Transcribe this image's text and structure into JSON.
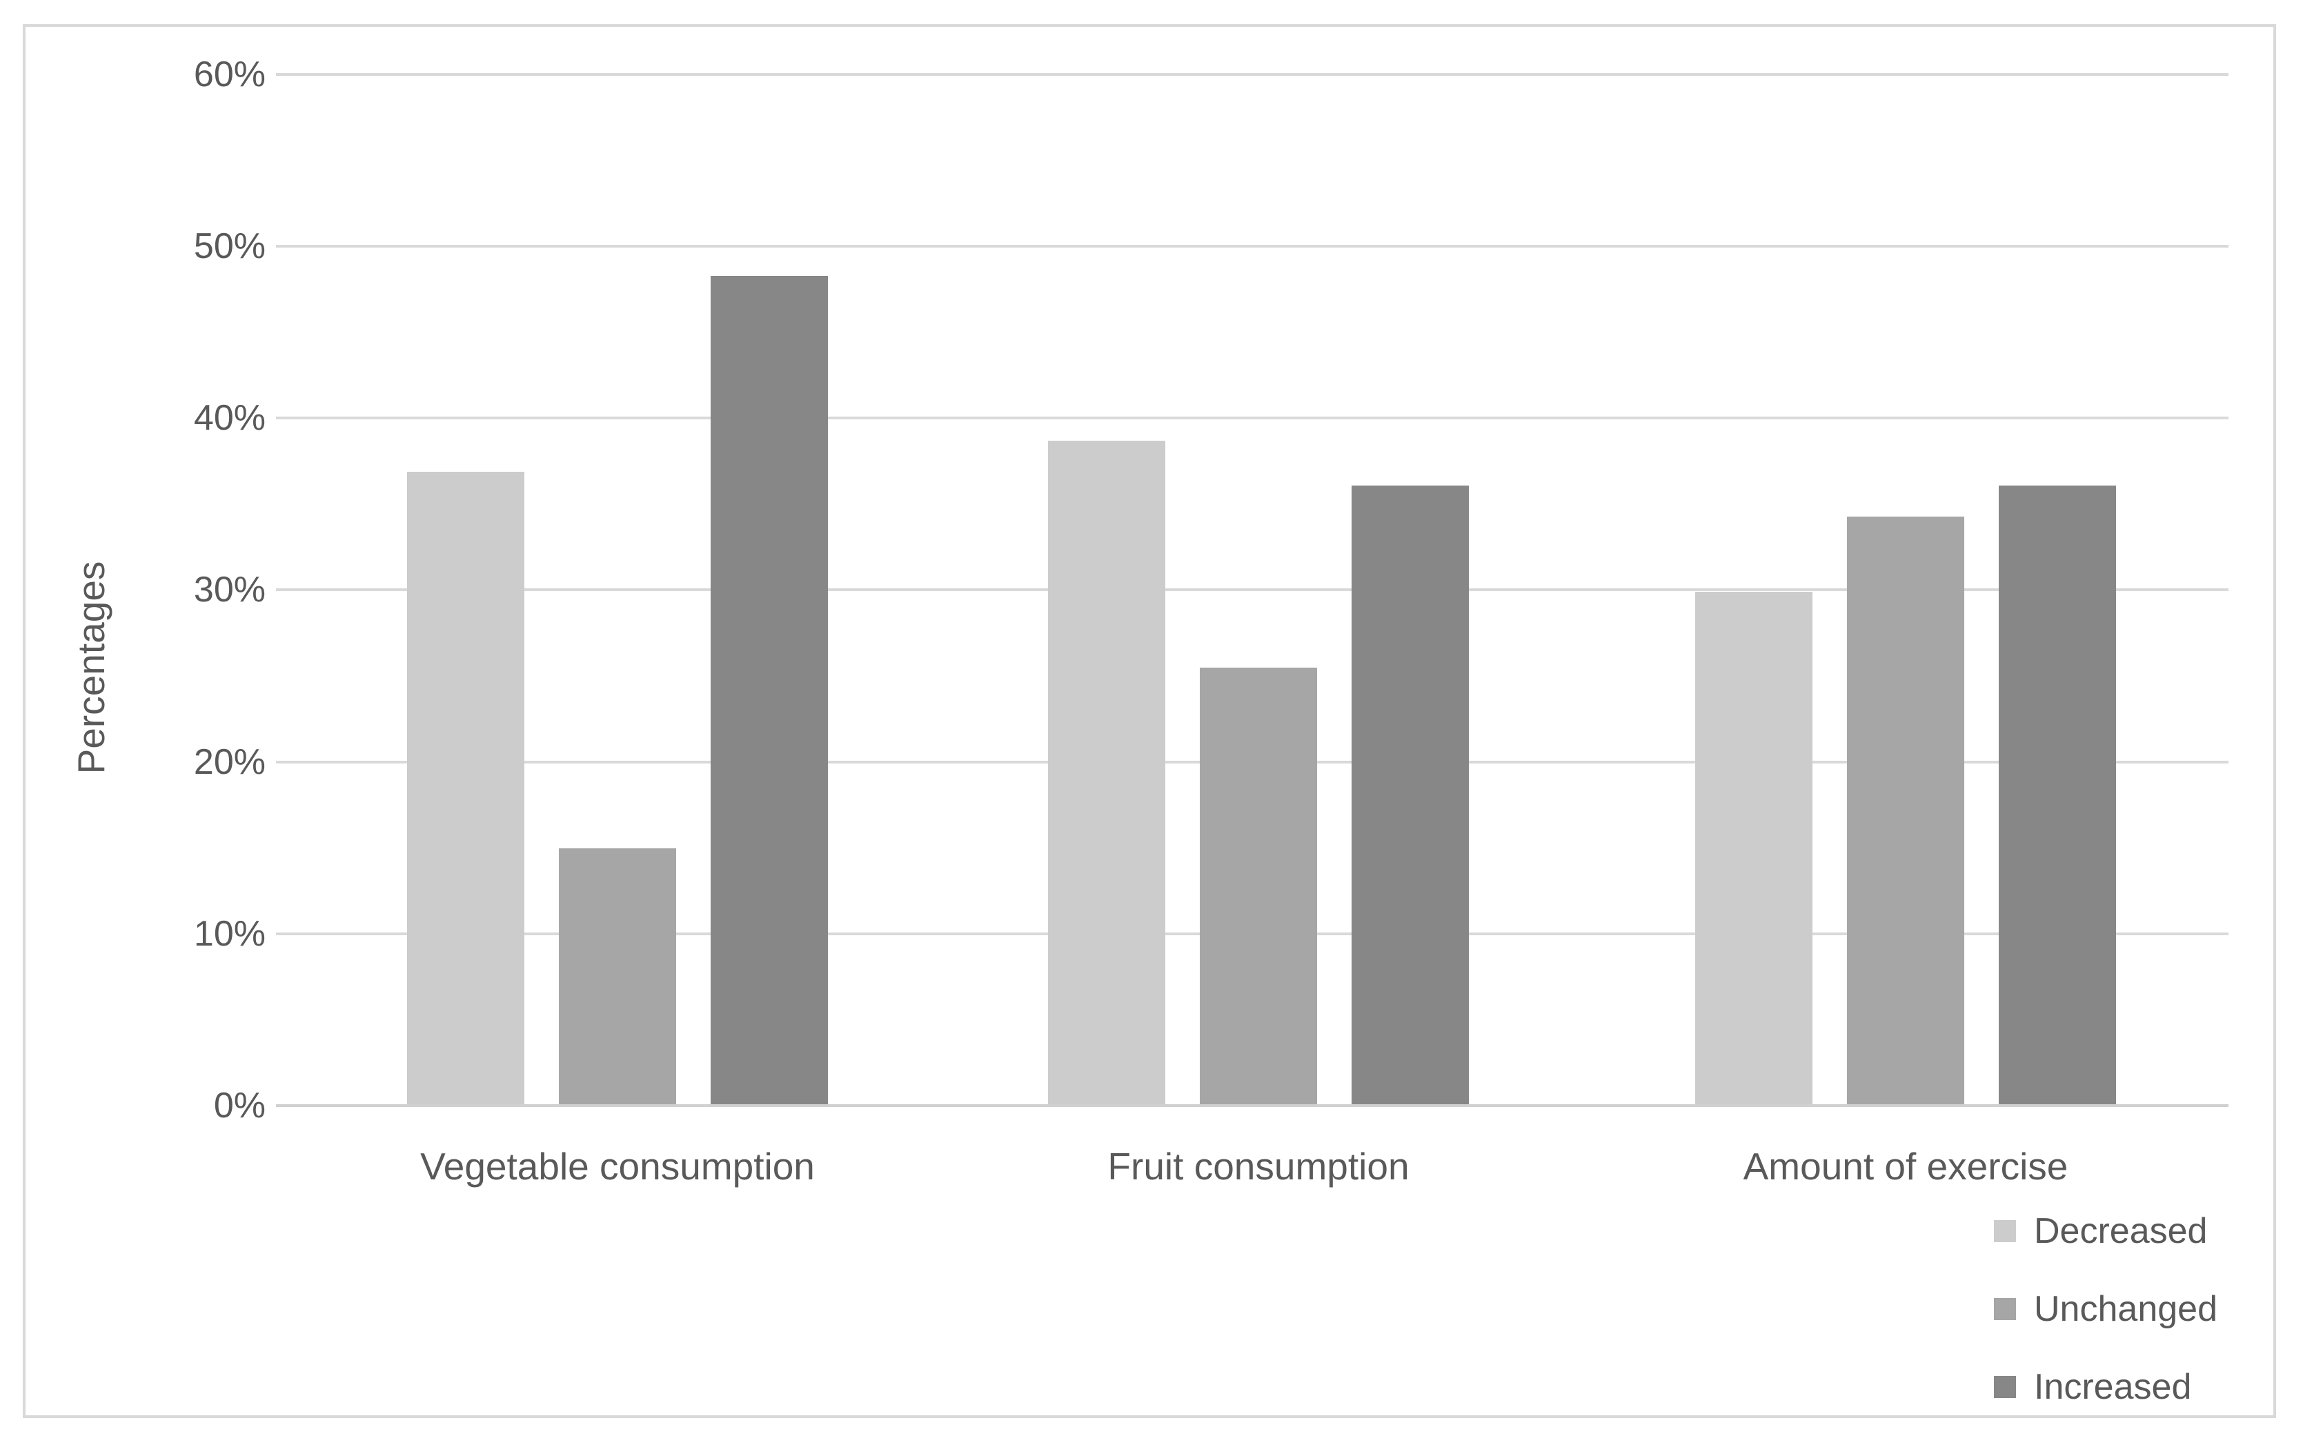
{
  "chart_data": {
    "type": "bar",
    "title": "",
    "xlabel": "",
    "ylabel": "Percentages",
    "categories": [
      "Vegetable consumption",
      "Fruit consumption",
      "Amount of exercise"
    ],
    "series": [
      {
        "name": "Decreased",
        "color": "#cccccc",
        "values": [
          36.8,
          38.6,
          29.8
        ]
      },
      {
        "name": "Unchanged",
        "color": "#a6a6a6",
        "values": [
          14.9,
          25.4,
          34.2
        ]
      },
      {
        "name": "Increased",
        "color": "#878787",
        "values": [
          48.2,
          36.0,
          36.0
        ]
      }
    ],
    "ylim": [
      0,
      60
    ],
    "y_ticks": [
      "0%",
      "10%",
      "20%",
      "30%",
      "40%",
      "50%",
      "60%"
    ],
    "y_tick_step": 10,
    "grid": true,
    "gridline_color": "#d9d9d9",
    "text_color": "#595959",
    "frame_border_color": "#d9d9d9",
    "legend_position": "bottom-right",
    "legend": [
      "Decreased",
      "Unchanged",
      "Increased"
    ]
  }
}
